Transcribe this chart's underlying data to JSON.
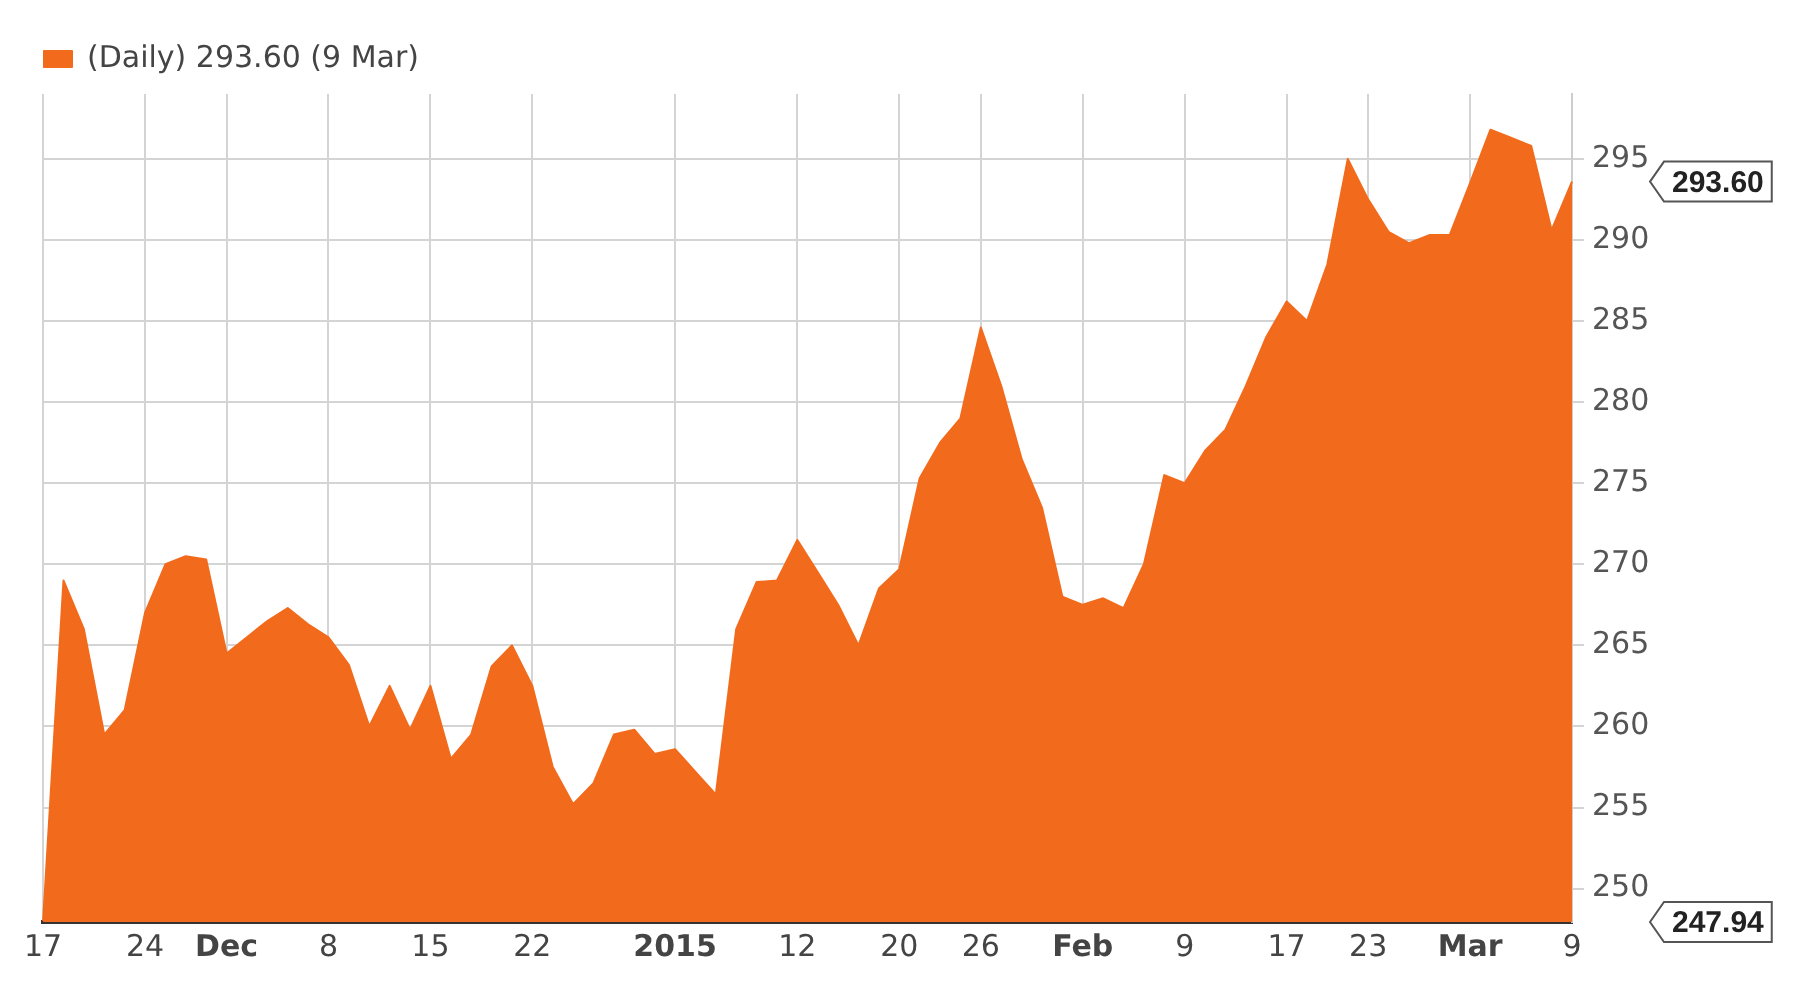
{
  "chart_data": {
    "type": "area",
    "categories": [
      "17",
      null,
      null,
      null,
      null,
      "24",
      null,
      null,
      null,
      "Dec",
      null,
      null,
      null,
      null,
      "8",
      null,
      null,
      null,
      null,
      "15",
      null,
      null,
      null,
      null,
      "22",
      null,
      null,
      null,
      null,
      null,
      null,
      "2015",
      null,
      null,
      null,
      null,
      null,
      "12",
      null,
      null,
      null,
      null,
      "20",
      null,
      null,
      null,
      "26",
      null,
      null,
      null,
      null,
      "Feb",
      null,
      null,
      null,
      null,
      "9",
      null,
      null,
      null,
      null,
      "17",
      null,
      null,
      null,
      "23",
      null,
      null,
      null,
      null,
      "Mar",
      null,
      null,
      null,
      null,
      "9"
    ],
    "series": [
      {
        "name": "(Daily) 293.60 (9 Mar)",
        "color": "#f26a1b",
        "values": [
          248,
          269,
          266,
          259.5,
          261,
          267,
          270,
          270.5,
          270.3,
          264.5,
          265.5,
          266.5,
          267.3,
          266.3,
          265.5,
          263.8,
          260,
          262.5,
          259.8,
          262.5,
          258,
          259.5,
          263.7,
          265,
          262.5,
          257.5,
          255.2,
          256.5,
          259.5,
          259.8,
          258.3,
          258.6,
          257.2,
          255.8,
          266,
          268.9,
          269,
          271.5,
          269.5,
          267.5,
          265,
          268.5,
          269.7,
          275.3,
          277.5,
          279,
          284.6,
          281,
          276.5,
          273.5,
          268,
          267.5,
          267.9,
          267.3,
          270,
          275.5,
          275,
          277,
          278.3,
          281,
          284,
          286.2,
          285,
          288.5,
          295,
          292.5,
          290.5,
          289.8,
          290.3,
          290.3,
          293.5,
          296.8,
          296.3,
          295.8,
          290.6,
          293.6
        ]
      }
    ],
    "ylim": [
      247.94,
      299
    ],
    "yticks": [
      250,
      255,
      260,
      265,
      270,
      275,
      280,
      285,
      290,
      295
    ],
    "annotations": [
      "293.60",
      "247.94"
    ],
    "grid": true,
    "legend": "top left"
  }
}
